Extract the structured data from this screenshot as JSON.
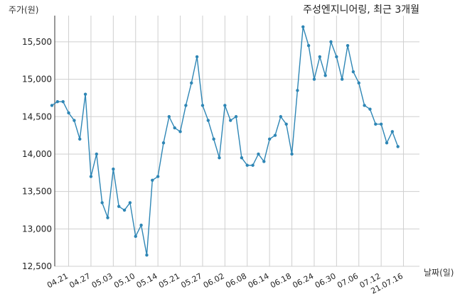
{
  "chart_data": {
    "type": "line",
    "title": "주성엔지니어링, 최근 3개월",
    "ylabel": "주가(원)",
    "xlabel": "날짜(일)",
    "ylim": [
      12500,
      15850
    ],
    "yticks": [
      12500,
      13000,
      13500,
      14000,
      14500,
      15000,
      15500
    ],
    "ytick_labels": [
      "12,500",
      "13,000",
      "13,500",
      "14,000",
      "14,500",
      "15,000",
      "15,500"
    ],
    "xtick_labels": [
      "04.21",
      "04.27",
      "05.03",
      "05.10",
      "05.14",
      "05.21",
      "05.27",
      "06.02",
      "06.08",
      "06.14",
      "06.18",
      "06.24",
      "06.30",
      "07.06",
      "07.12",
      "21.07.16"
    ],
    "xtick_index": [
      3,
      7,
      11,
      15,
      19,
      23,
      27,
      31,
      35,
      39,
      43,
      47,
      51,
      55,
      59,
      63
    ],
    "grid": true,
    "color": "#2e86b5",
    "series": [
      {
        "values": [
          14650,
          14700,
          14700,
          14550,
          14450,
          14200,
          14800,
          13700,
          14000,
          13350,
          13150,
          13800,
          13300,
          13250,
          13350,
          12900,
          13050,
          12650,
          13650,
          13700,
          14150,
          14500,
          14350,
          14300,
          14650,
          14950,
          15300,
          14650,
          14450,
          14200,
          13950,
          14650,
          14450,
          14500,
          13950,
          13850,
          13850,
          14000,
          13900,
          14200,
          14250,
          14500,
          14400,
          14000,
          14850,
          15700,
          15450,
          15000,
          15300,
          15050,
          15500,
          15300,
          15000,
          15450,
          15100,
          14950,
          14650,
          14600,
          14400,
          14400,
          14150,
          14300,
          14100
        ]
      }
    ]
  }
}
